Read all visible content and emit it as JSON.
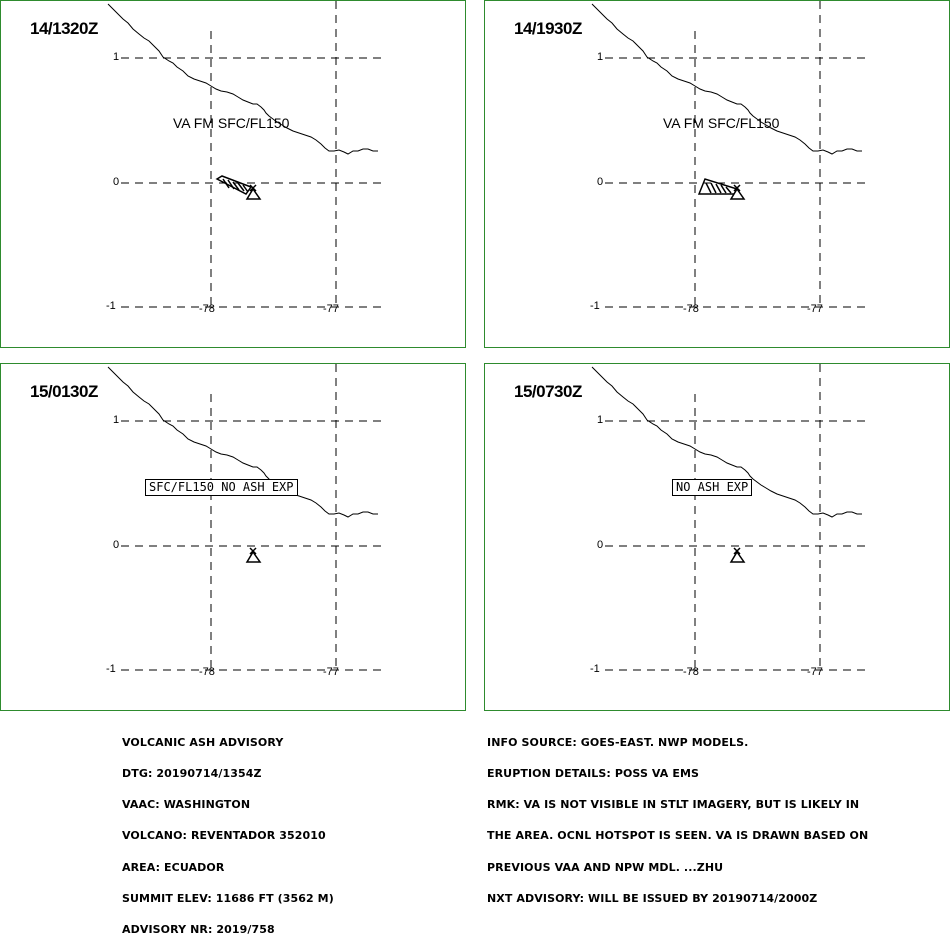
{
  "panels": [
    {
      "time": "14/1320Z",
      "label_type": "va",
      "label": "VA FM SFC/FL150",
      "ash_polygon": true
    },
    {
      "time": "14/1930Z",
      "label_type": "va",
      "label": "VA FM SFC/FL150",
      "ash_polygon": true
    },
    {
      "time": "15/0130Z",
      "label_type": "box",
      "label": "SFC/FL150 NO ASH EXP",
      "ash_polygon": false
    },
    {
      "time": "15/0730Z",
      "label_type": "box",
      "label": "NO ASH EXP",
      "ash_polygon": false
    }
  ],
  "axes": {
    "lat_ticks": [
      "1",
      "0",
      "-1"
    ],
    "lon_ticks": [
      "-78",
      "-77"
    ]
  },
  "footer_left": [
    "VOLCANIC ASH ADVISORY",
    "DTG: 20190714/1354Z",
    "VAAC: WASHINGTON",
    "VOLCANO: REVENTADOR 352010",
    "AREA: ECUADOR",
    "SUMMIT ELEV: 11686 FT (3562 M)",
    "ADVISORY NR: 2019/758"
  ],
  "footer_right": [
    "INFO SOURCE: GOES-EAST. NWP MODELS.",
    "ERUPTION DETAILS: POSS VA EMS",
    "RMK: VA IS NOT VISIBLE IN STLT IMAGERY, BUT IS LIKELY IN",
    "THE AREA. OCNL HOTSPOT IS SEEN. VA IS DRAWN BASED ON",
    "PREVIOUS VAA AND NPW MDL. ...ZHU",
    "NXT ADVISORY: WILL BE ISSUED BY 20190714/2000Z"
  ],
  "colors": {
    "panel_border": "#2e8b2e",
    "lines": "#000000",
    "background": "#ffffff"
  },
  "icons": {
    "volcano": "volcano-triangle-icon"
  }
}
